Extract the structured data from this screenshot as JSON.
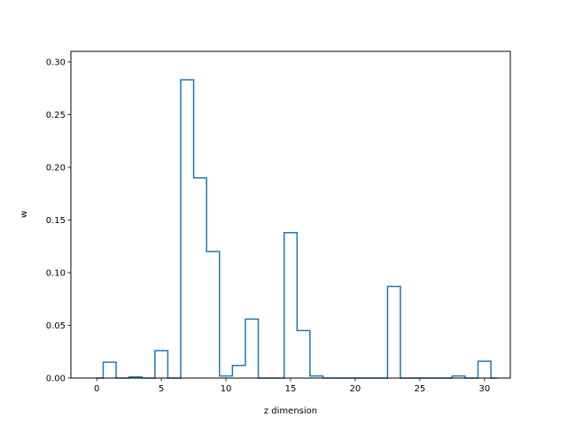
{
  "chart_data": {
    "type": "step",
    "xlabel": "z dimension",
    "ylabel": "w",
    "xlim": [
      -2,
      32
    ],
    "ylim": [
      0,
      0.31
    ],
    "xticks": [
      0,
      5,
      10,
      15,
      20,
      25,
      30
    ],
    "yticks": [
      0.0,
      0.05,
      0.1,
      0.15,
      0.2,
      0.25,
      0.3
    ],
    "xtick_labels": [
      "0",
      "5",
      "10",
      "15",
      "20",
      "25",
      "30"
    ],
    "ytick_labels": [
      "0.00",
      "0.05",
      "0.10",
      "0.15",
      "0.20",
      "0.25",
      "0.30"
    ],
    "line_color": "#1f77b4",
    "series": [
      {
        "x": [
          0,
          1,
          2,
          3,
          4,
          5,
          6,
          7,
          8,
          9,
          10,
          11,
          12,
          13,
          14,
          15,
          16,
          17,
          18,
          19,
          20,
          21,
          22,
          23,
          24,
          25,
          26,
          27,
          28,
          29,
          30,
          31
        ],
        "values": [
          0.0,
          0.015,
          0.0,
          0.001,
          0.0,
          0.026,
          0.0,
          0.283,
          0.19,
          0.12,
          0.002,
          0.012,
          0.056,
          0.0,
          0.0,
          0.138,
          0.045,
          0.002,
          0.0,
          0.0,
          0.0,
          0.0,
          0.0,
          0.087,
          0.0,
          0.0,
          0.0,
          0.0,
          0.002,
          0.0,
          0.016,
          0.0
        ]
      }
    ]
  }
}
